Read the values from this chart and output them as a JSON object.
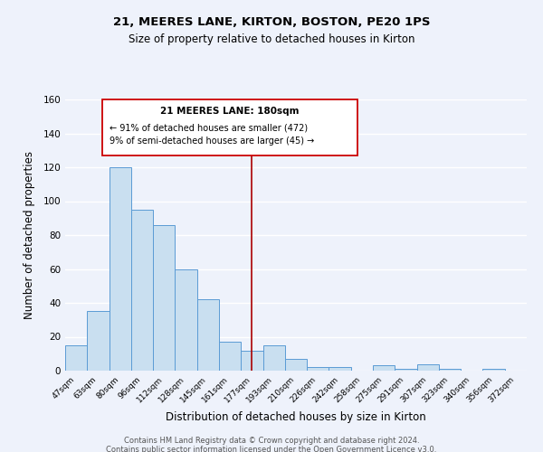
{
  "title": "21, MEERES LANE, KIRTON, BOSTON, PE20 1PS",
  "subtitle": "Size of property relative to detached houses in Kirton",
  "xlabel": "Distribution of detached houses by size in Kirton",
  "ylabel": "Number of detached properties",
  "bar_labels": [
    "47sqm",
    "63sqm",
    "80sqm",
    "96sqm",
    "112sqm",
    "128sqm",
    "145sqm",
    "161sqm",
    "177sqm",
    "193sqm",
    "210sqm",
    "226sqm",
    "242sqm",
    "258sqm",
    "275sqm",
    "291sqm",
    "307sqm",
    "323sqm",
    "340sqm",
    "356sqm",
    "372sqm"
  ],
  "bar_values": [
    15,
    35,
    120,
    95,
    86,
    60,
    42,
    17,
    12,
    15,
    7,
    2,
    2,
    0,
    3,
    1,
    4,
    1,
    0,
    1,
    0
  ],
  "bar_color": "#c9dff0",
  "bar_edge_color": "#5b9bd5",
  "background_color": "#eef2fb",
  "grid_color": "#ffffff",
  "vline_x_index": 8,
  "vline_color": "#aa0000",
  "annotation_title": "21 MEERES LANE: 180sqm",
  "annotation_line1": "← 91% of detached houses are smaller (472)",
  "annotation_line2": "9% of semi-detached houses are larger (45) →",
  "annotation_box_color": "#cc0000",
  "ylim": [
    0,
    160
  ],
  "yticks": [
    0,
    20,
    40,
    60,
    80,
    100,
    120,
    140,
    160
  ],
  "footer1": "Contains HM Land Registry data © Crown copyright and database right 2024.",
  "footer2": "Contains public sector information licensed under the Open Government Licence v3.0."
}
